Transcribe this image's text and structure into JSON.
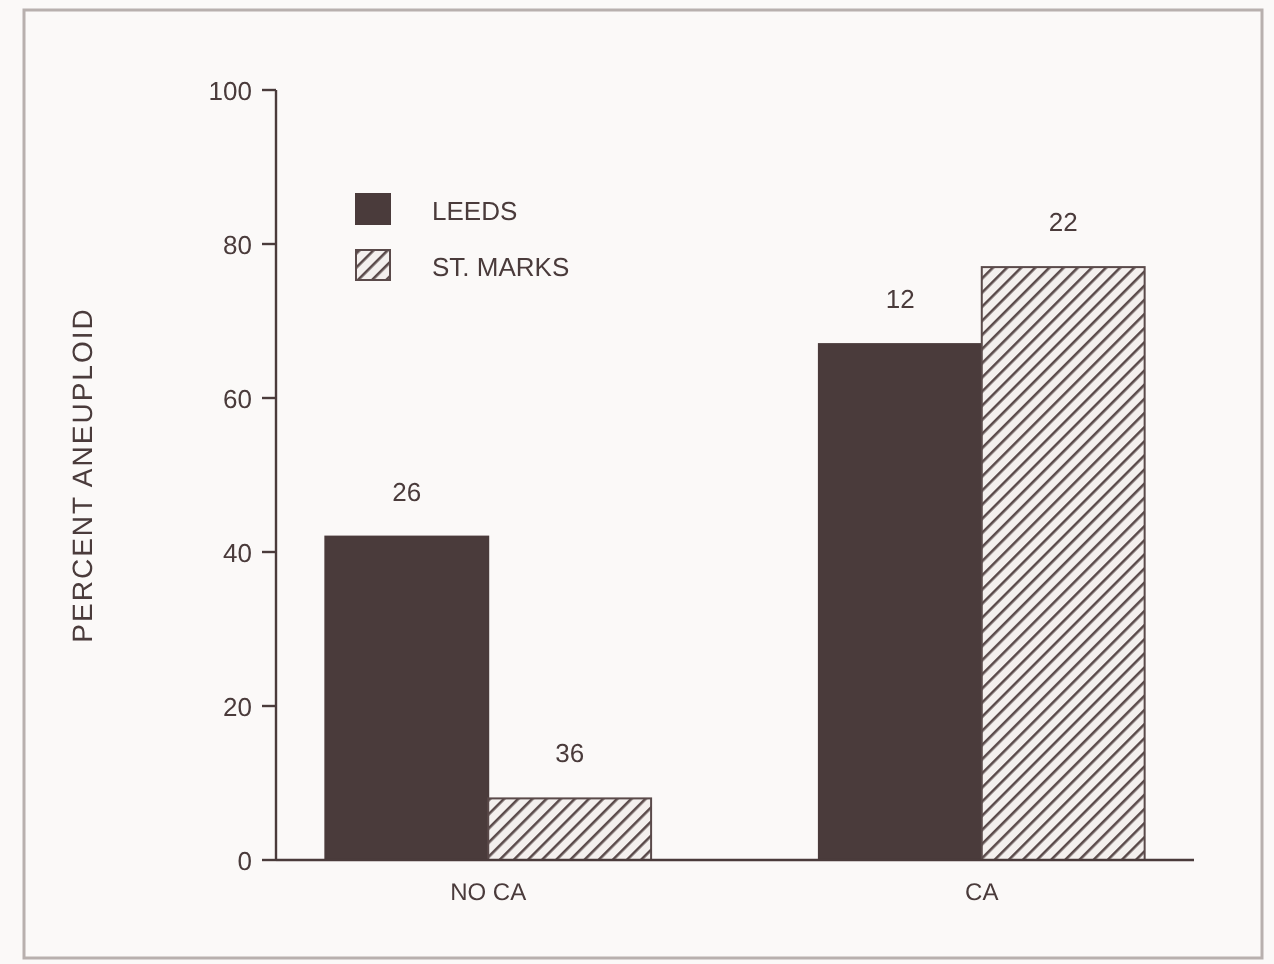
{
  "chart_data": {
    "type": "bar",
    "ylabel": "PERCENT ANEUPLOID",
    "categories": [
      "NO CA",
      "CA"
    ],
    "series": [
      {
        "name": "LEEDS",
        "color": "#4a3b3b",
        "values": [
          42,
          67
        ]
      },
      {
        "name": "ST. MARKS",
        "color": "#5a4a4a",
        "values": [
          8,
          77
        ]
      }
    ],
    "annotations": [
      {
        "text": "26",
        "x": "NO CA",
        "y": 42
      },
      {
        "text": "36",
        "x": "NO CA",
        "y": 8
      },
      {
        "text": "12",
        "x": "CA",
        "y": 67
      },
      {
        "text": "22",
        "x": "CA",
        "y": 77
      }
    ],
    "ylim": [
      0,
      100
    ],
    "yticks": [
      0,
      20,
      40,
      60,
      80,
      100
    ],
    "legend": "top left",
    "grid": false
  }
}
